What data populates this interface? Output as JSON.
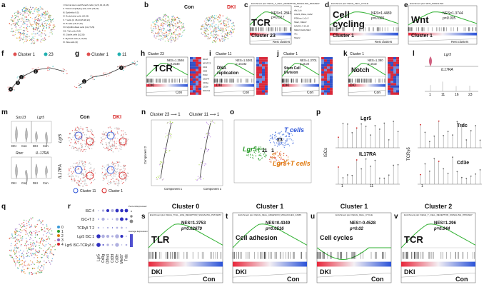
{
  "a": {
    "label": "a",
    "legend": [
      "I. Normal stem and Paneth cells (1,2,6,13,14,16)",
      "II. Transit-amplifying (TA) cells (19,22)",
      "III. Epithelia (4,5)",
      "IV. Endothelial cells (12,26)",
      "V. T cells (0, 18,23,25,28,21)",
      "VI. B cells (15,17,24)",
      "VII. Myofibroblast cells (11,27,29)",
      "VIII. Tuft cells (3,8)",
      "IX. Goblet cells (10,30)",
      "X. Myeloid cells (7,10,20)",
      "XI. Stia cells (9)"
    ]
  },
  "b": {
    "label": "b",
    "con": "Con",
    "dki": "DKI"
  },
  "c": {
    "label": "c",
    "header": "Enrichment plot: KEGG_T_CELL_RECEPTOR_SIGNALING_PATHWAY",
    "term": "TCR",
    "nes": "NES=1.2841",
    "p": "p=0.017",
    "cluster": "Cluster 23",
    "rest": "Rest clusters",
    "genes": [
      "Cd3e_g",
      "Akt, Lck",
      "Cd4/4, Rhoa, Cd42",
      "Pi3Kna,r1,r2,r3",
      "Nfatc, Nfatc3",
      "MAPK1,7,13,14",
      "Nfkb1,Nokb,Nfa4",
      "Tec",
      "Nfatc1"
    ]
  },
  "d": {
    "label": "d",
    "header": "Enrichment plot: KEGG_CELL_CYCLE",
    "term_lines": [
      "Cell",
      "cycling"
    ],
    "nes": "NES=1.4489",
    "p": "p=0.025",
    "cluster": "Cluster 1",
    "rest": "Rest clusters"
  },
  "e": {
    "label": "e",
    "header": "Enrichment plot: WNT_SIGNALING",
    "term": "Wnt",
    "nes": "NES=1.3744",
    "p": "p=0.035",
    "cluster": "Cluster 1",
    "rest": "Rest clusters"
  },
  "f": {
    "label": "f",
    "legend": [
      "Cluster 1",
      "23"
    ],
    "nodes": [
      "1",
      "2",
      "3",
      "4"
    ]
  },
  "g": {
    "label": "g",
    "legend": [
      "Cluster 1",
      "11"
    ],
    "nodes": [
      "1",
      "2"
    ]
  },
  "h": {
    "label": "h",
    "cluster": "Cluster 23",
    "term": "TCR",
    "nes": "NES=1.3546",
    "p": "p=0.0345",
    "low": "DKI",
    "high": "Con",
    "genes": [
      "NFAT",
      "NFATC3",
      "CD4",
      "CD8",
      "PIK3",
      "CD247",
      "CD3g",
      "CD3e",
      "SOCS1"
    ]
  },
  "i": {
    "label": "i",
    "cluster": "Cluster 11",
    "term_lines": [
      "DNA",
      "replication"
    ],
    "nes": "NES=1.5361",
    "p": "p=0.043",
    "low": "DKI",
    "high": "Con"
  },
  "j": {
    "label": "j",
    "cluster": "Cluster 1",
    "term_lines": [
      "Stem Cell",
      "Division"
    ],
    "nes": "NES=1.3701",
    "p": "p=0.03",
    "low": "DKI",
    "high": "Con"
  },
  "k": {
    "label": "k",
    "cluster": "Cluster 1",
    "term": "Notch",
    "nes": "NES=1.380",
    "p": "p=0.01",
    "low": "DKI",
    "high": "Con"
  },
  "l": {
    "label": "l",
    "genes": [
      "Lgr5",
      "IL17RA"
    ],
    "clusters": [
      "1",
      "11",
      "16",
      "23"
    ]
  },
  "m": {
    "label": "m",
    "violin_genes": [
      "Sox13",
      "Lgr5",
      "Rorc",
      "IL-17RA"
    ],
    "groups": [
      "DKI",
      "Con"
    ],
    "umap_titles": [
      "Con",
      "DKI"
    ],
    "umap_genes": [
      "Lgr5",
      "IL17RA"
    ],
    "legend": [
      "Cluster 11",
      "Cluster 1"
    ]
  },
  "n": {
    "label": "n",
    "titles": [
      "Cluster 23 ⟶ 1",
      "Cluster 11 ⟶ 1"
    ],
    "x_axis": "Component 1",
    "y_axis": "Component 2"
  },
  "o": {
    "label": "o",
    "t_cells": "T cells",
    "c23": "23",
    "lgr5": "Lgr5+",
    "c11": "11",
    "c1": "1",
    "lgr5t": "Lgr5+T cells"
  },
  "p": {
    "label": "p",
    "genes": [
      "Lgr5",
      "IL17RA",
      "Trdc",
      "Cd3e"
    ],
    "groups": [
      "ISCs",
      "TCRγδ"
    ],
    "clusters": [
      "1",
      "11",
      "1"
    ]
  },
  "q": {
    "label": "q",
    "legend": [
      "0",
      "1",
      "2",
      "3",
      "4"
    ]
  },
  "r": {
    "label": "r",
    "rows": [
      "ISC 4",
      "ISC+T 3",
      "TCRγδ T 2",
      "Lgr5 ISC 1",
      "Lgr5 ISC-TCRγδ 0"
    ],
    "columns": [
      "Lgr5",
      "Cd3g",
      "Olfm4",
      "Cd3d",
      "Cd3e",
      "Mki67",
      "Trdc"
    ],
    "size_title": "Percent Expressed",
    "color_title": "Average Expression"
  },
  "s": {
    "label": "s",
    "cluster": "Cluster 0",
    "header": "Enrichment plot: KEGG_TOLL_LIKE_RECEPTOR_SIGNALING_PATHWAY",
    "term": "TLR",
    "nes": "NES=1.3753",
    "p": "p=0.02679",
    "low": "DKI",
    "high": "Con"
  },
  "t": {
    "label": "t",
    "cluster": "Cluster 1",
    "header": "Enrichment plot: KEGG_CELL_ADHESION_MOLECULES_CAMS",
    "term": "Cell adhesion",
    "nes": "NES=0.4349",
    "p": "p=0.0516",
    "low": "DKI",
    "high": "Con"
  },
  "u": {
    "label": "u",
    "cluster": "Cluster 1",
    "header": "Enrichment plot: KEGG_CELL_CYCLE",
    "term": "Cell cycles",
    "nes": "NES=-0.4528",
    "p": "p=0.02",
    "low": "DKI",
    "high": "Con"
  },
  "v": {
    "label": "v",
    "cluster": "Cluster 2",
    "header": "Enrichment plot: KEGG_T_CELL_RECEPTOR_SIGNALING_PATHWAY",
    "term": "TCR",
    "nes": "NES=1.296",
    "p": "p=0.044",
    "low": "DKI",
    "high": "Con"
  }
}
